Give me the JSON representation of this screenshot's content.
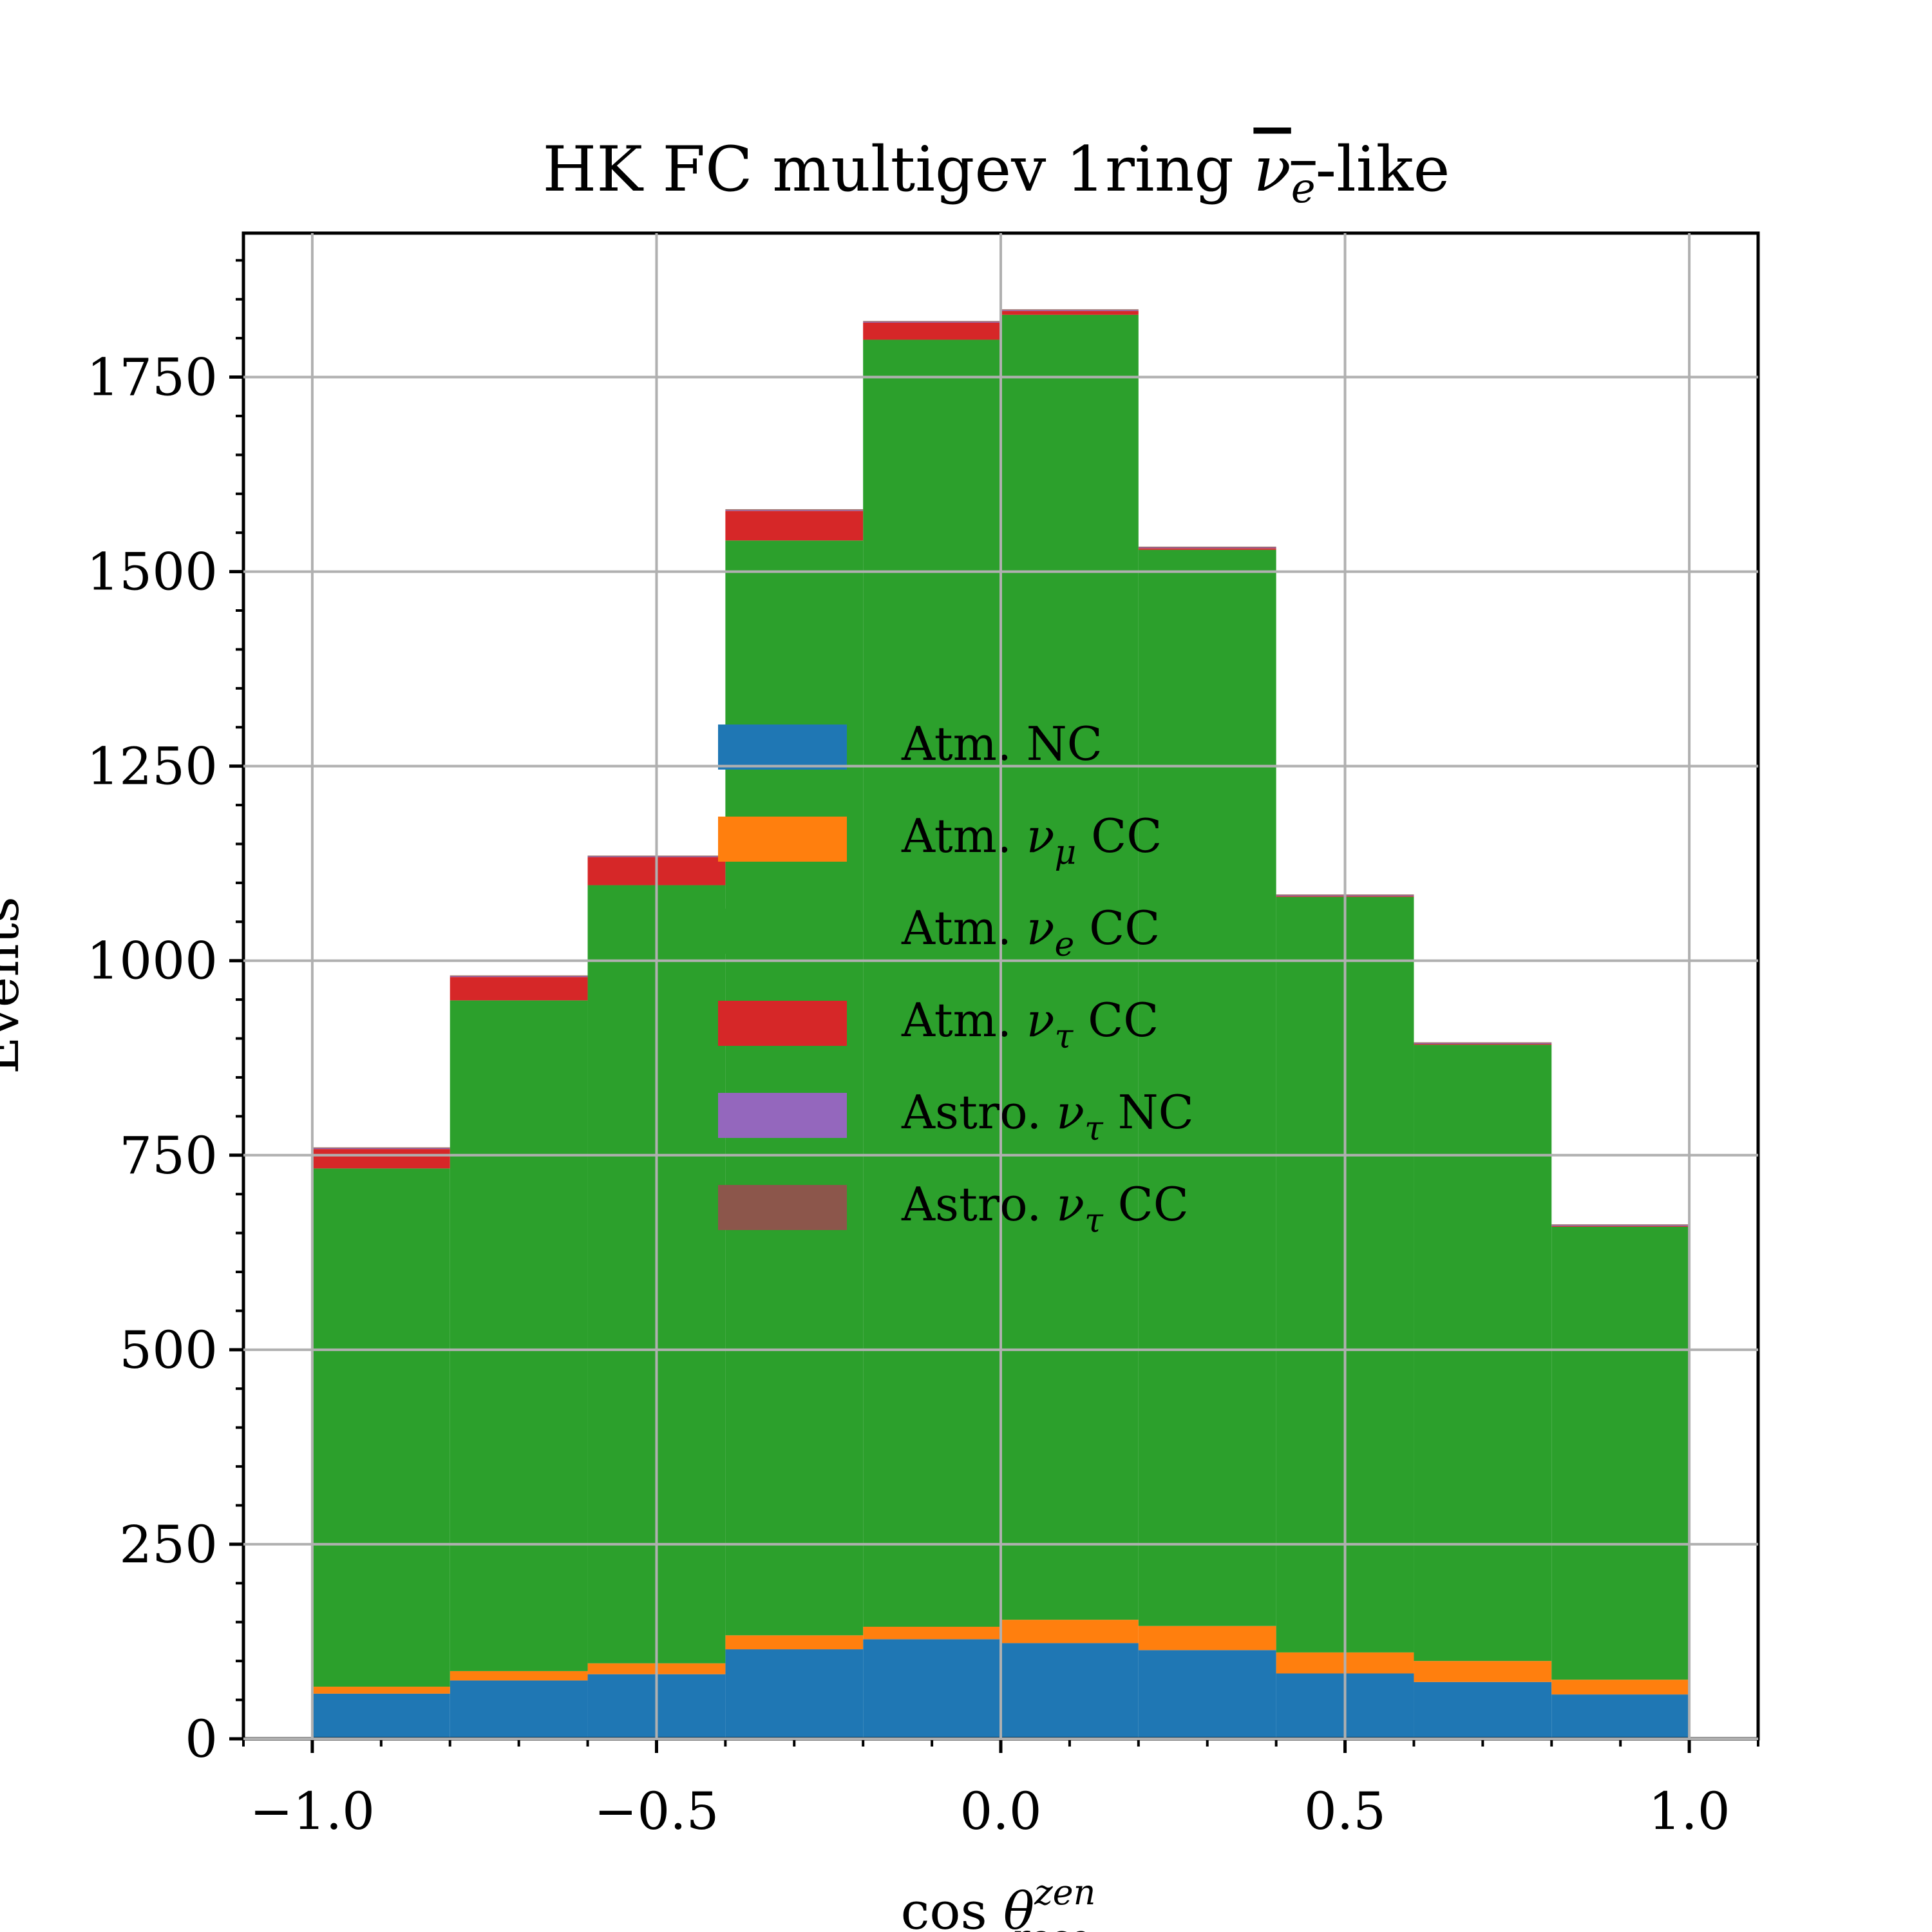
{
  "chart_data": {
    "type": "bar",
    "stacked": true,
    "histogram": true,
    "title": {
      "text": "HK FC multigev 1ring ",
      "math_symbol": "ν",
      "math_sub": "e",
      "suffix": "-like"
    },
    "xlabel": {
      "text": "cos",
      "symbol": "θ",
      "sup": "zen",
      "sub": "reco"
    },
    "ylabel": "Events",
    "bin_edges": [
      -1.0,
      -0.8,
      -0.6,
      -0.4,
      -0.2,
      0.0,
      0.2,
      0.4,
      0.6,
      0.8,
      1.0
    ],
    "xlim": [
      -1.1,
      1.1
    ],
    "ylim": [
      0,
      1935
    ],
    "xticks": [
      -1.0,
      -0.5,
      0.0,
      0.5,
      1.0
    ],
    "xtick_labels": [
      "−1.0",
      "−0.5",
      "0.0",
      "0.5",
      "1.0"
    ],
    "yticks": [
      0,
      250,
      500,
      750,
      1000,
      1250,
      1500,
      1750
    ],
    "ytick_labels": [
      "0",
      "250",
      "500",
      "750",
      "1000",
      "1250",
      "1500",
      "1750"
    ],
    "grid": true,
    "legend_position": "center",
    "series": [
      {
        "name": "Atm. NC",
        "label_parts": [
          "Atm.",
          "",
          "",
          "NC"
        ],
        "color": "#1f77b4",
        "values": [
          58,
          75,
          83,
          115,
          128,
          123,
          114,
          84,
          73,
          57
        ]
      },
      {
        "name": "Atm. νμ CC",
        "label_parts": [
          "Atm.",
          "ν",
          "μ",
          "CC"
        ],
        "color": "#ff7f0e",
        "values": [
          9,
          12,
          14,
          18,
          16,
          30,
          31,
          27,
          27,
          19
        ]
      },
      {
        "name": "Atm. νe CC",
        "label_parts": [
          "Atm.",
          "ν",
          "e",
          "CC"
        ],
        "color": "#2ca02c",
        "values": [
          666,
          862,
          1000,
          1407,
          1654,
          1677,
          1383,
          971,
          792,
          582
        ]
      },
      {
        "name": "Atm. ντ CC",
        "label_parts": [
          "Atm.",
          "ν",
          "τ",
          "CC"
        ],
        "color": "#d62728",
        "values": [
          25,
          30,
          36,
          38,
          22,
          5,
          2,
          1,
          1,
          1
        ]
      },
      {
        "name": "Astro. ντ NC",
        "label_parts": [
          "Astro.",
          "ν",
          "τ",
          "NC"
        ],
        "color": "#9467bd",
        "values": [
          1,
          1,
          1,
          1,
          1,
          1,
          1,
          1,
          1,
          1
        ]
      },
      {
        "name": "Astro. ντ CC",
        "label_parts": [
          "Astro.",
          "ν",
          "τ",
          "CC"
        ],
        "color": "#8c564b",
        "values": [
          1,
          1,
          1,
          1,
          1,
          1,
          1,
          1,
          1,
          1
        ]
      }
    ]
  }
}
